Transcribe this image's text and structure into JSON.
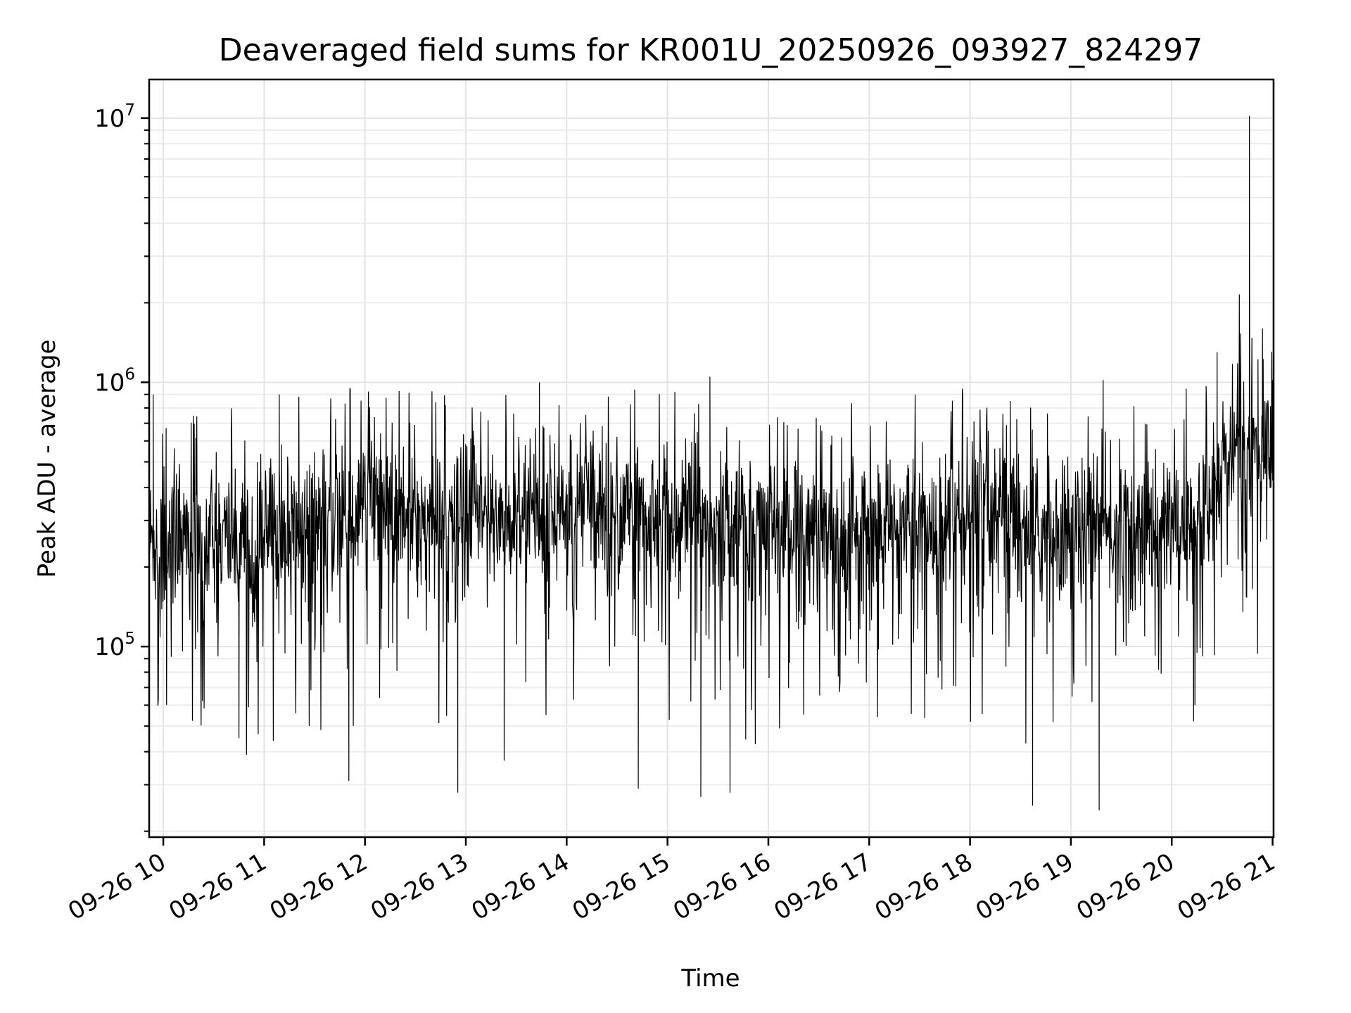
{
  "chart_data": {
    "type": "line",
    "title": "Deaveraged field sums for KR001U_20250926_093927_824297",
    "xlabel": "Time",
    "ylabel": "Peak ADU - average",
    "yscale": "log",
    "ylim": [
      19000,
      14000000
    ],
    "xlim_hours": [
      9.86,
      21.01
    ],
    "grid": true,
    "line_color": "#000000",
    "x_ticks": [
      {
        "hour": 10,
        "label": "09-26 10"
      },
      {
        "hour": 11,
        "label": "09-26 11"
      },
      {
        "hour": 12,
        "label": "09-26 12"
      },
      {
        "hour": 13,
        "label": "09-26 13"
      },
      {
        "hour": 14,
        "label": "09-26 14"
      },
      {
        "hour": 15,
        "label": "09-26 15"
      },
      {
        "hour": 16,
        "label": "09-26 16"
      },
      {
        "hour": 17,
        "label": "09-26 17"
      },
      {
        "hour": 18,
        "label": "09-26 18"
      },
      {
        "hour": 19,
        "label": "09-26 19"
      },
      {
        "hour": 20,
        "label": "09-26 20"
      },
      {
        "hour": 21,
        "label": "09-26 21"
      }
    ],
    "y_ticks": [
      {
        "value": 100000,
        "base": "10",
        "exp": "5"
      },
      {
        "value": 1000000,
        "base": "10",
        "exp": "6"
      },
      {
        "value": 10000000,
        "base": "10",
        "exp": "7"
      }
    ],
    "series": [
      {
        "name": "deaveraged field sum",
        "baseline_by_hour": [
          [
            9.86,
            250000
          ],
          [
            11.0,
            260000
          ],
          [
            12.0,
            330000
          ],
          [
            13.0,
            300000
          ],
          [
            14.0,
            330000
          ],
          [
            15.0,
            300000
          ],
          [
            16.0,
            280000
          ],
          [
            17.0,
            270000
          ],
          [
            18.0,
            300000
          ],
          [
            19.0,
            260000
          ],
          [
            20.0,
            290000
          ],
          [
            20.4,
            330000
          ],
          [
            20.5,
            520000
          ],
          [
            21.01,
            580000
          ]
        ],
        "notable_points": [
          [
            9.9,
            900000
          ],
          [
            10.75,
            45000
          ],
          [
            11.15,
            900000
          ],
          [
            11.85,
            950000
          ],
          [
            11.84,
            31000
          ],
          [
            12.92,
            28000
          ],
          [
            13.38,
            37000
          ],
          [
            13.73,
            1000000
          ],
          [
            14.71,
            29000
          ],
          [
            15.42,
            1050000
          ],
          [
            15.33,
            27000
          ],
          [
            15.62,
            28000
          ],
          [
            18.62,
            25000
          ],
          [
            19.28,
            24000
          ],
          [
            19.32,
            1020000
          ],
          [
            20.23,
            60000
          ],
          [
            20.45,
            1300000
          ],
          [
            20.67,
            2150000
          ],
          [
            20.9,
            1600000
          ],
          [
            20.77,
            10200000
          ],
          [
            21.0,
            1020000
          ]
        ]
      }
    ]
  }
}
